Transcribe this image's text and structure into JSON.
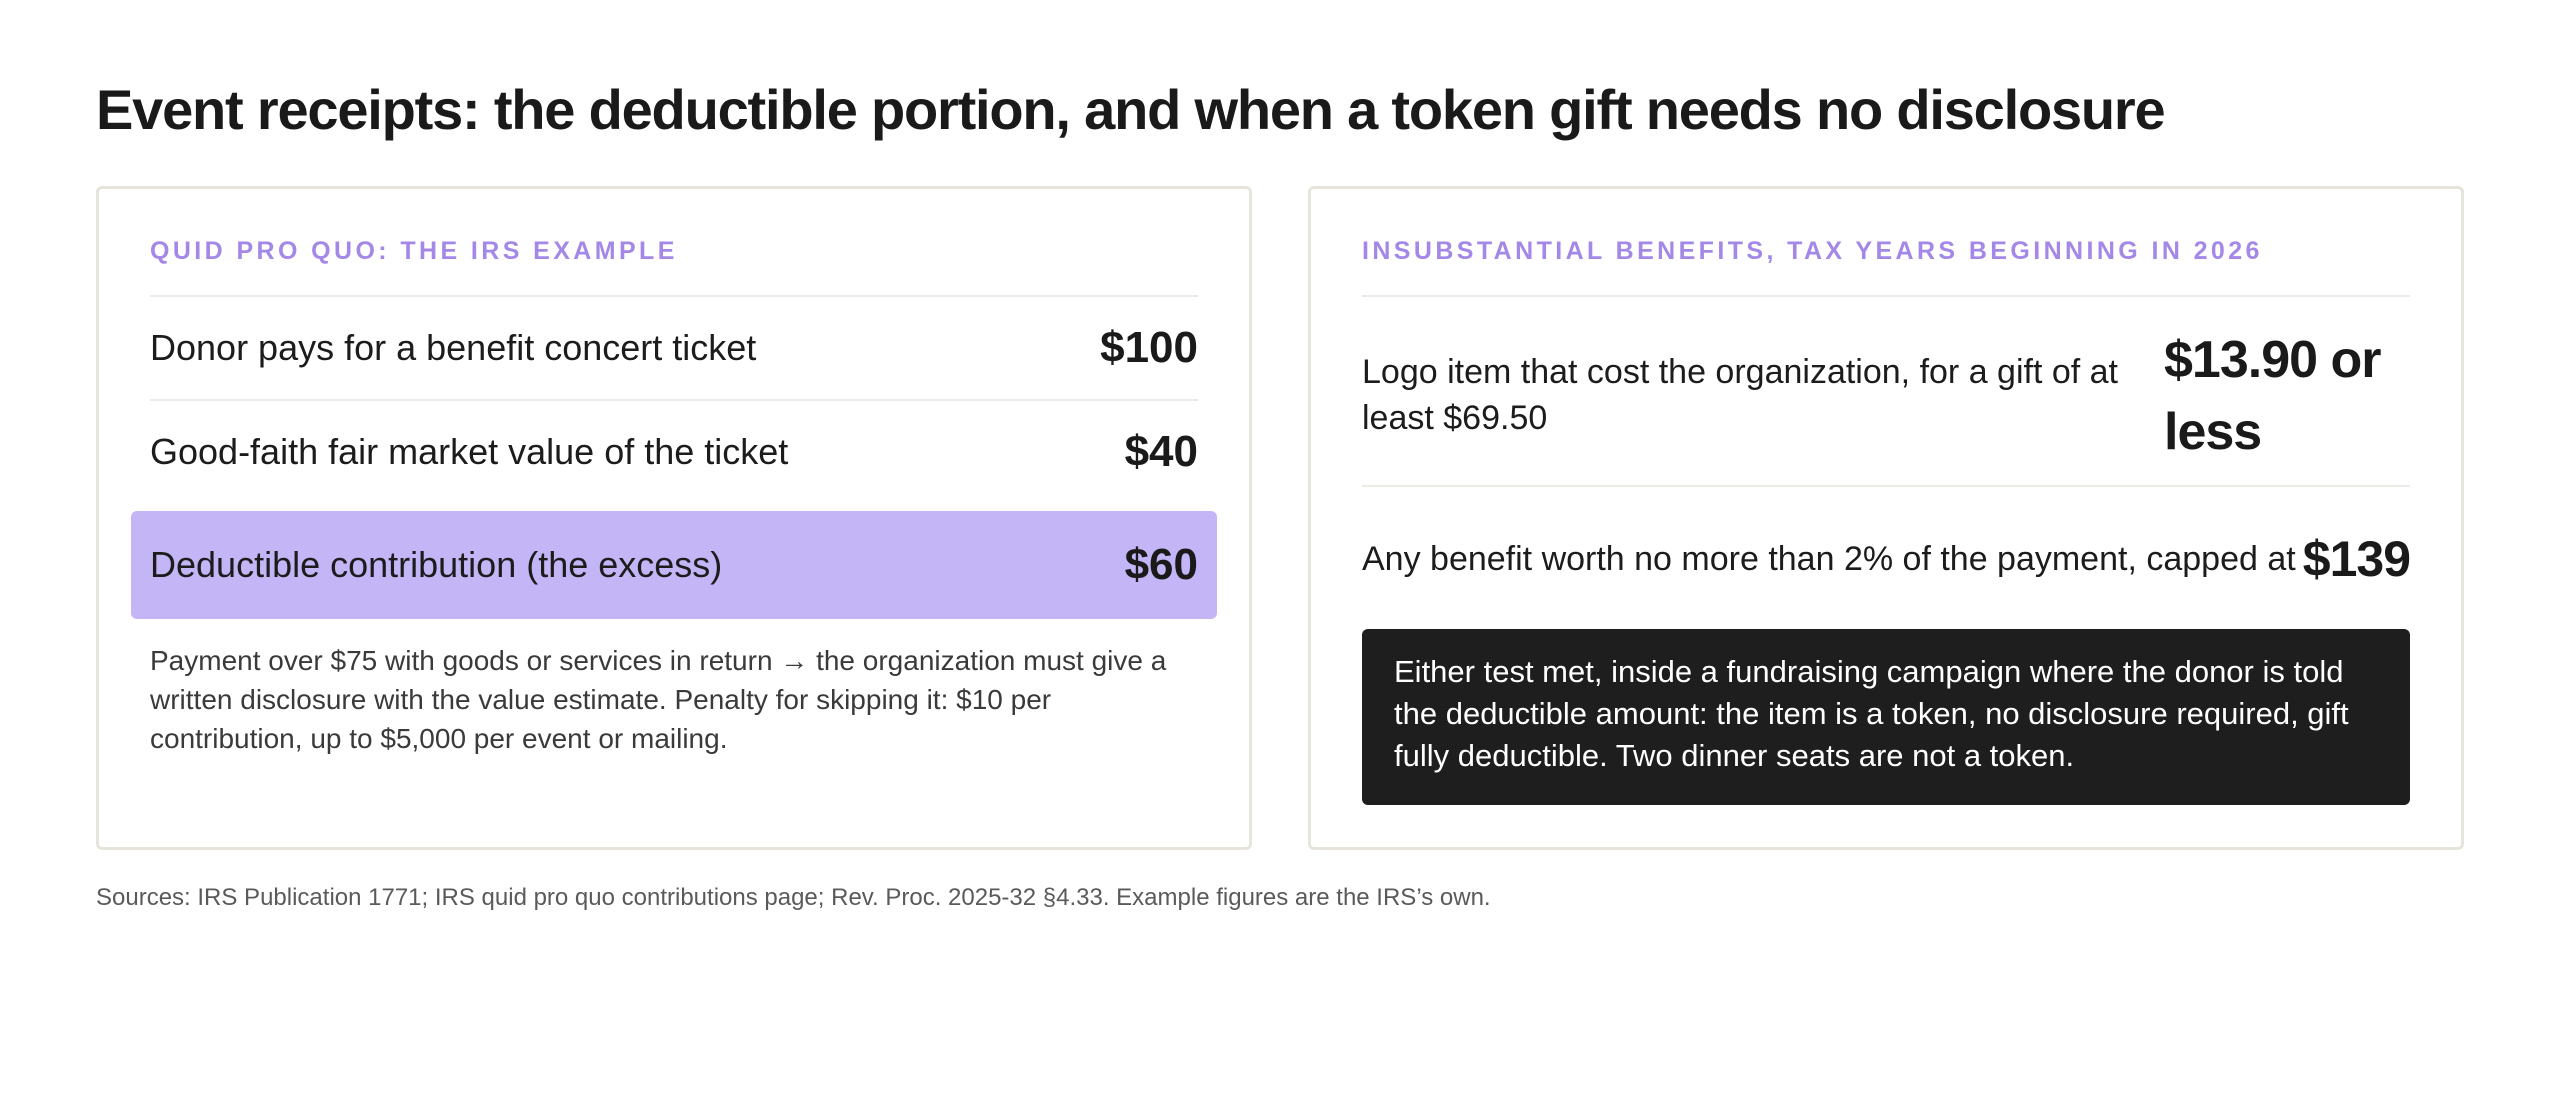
{
  "title": "Event receipts: the deductible portion, and when a token gift needs no disclosure",
  "left_card": {
    "eyebrow": "QUID PRO QUO: THE IRS EXAMPLE",
    "rows": [
      {
        "label": "Donor pays for a benefit concert ticket",
        "value": "$100"
      },
      {
        "label": "Good-faith fair market value of the ticket",
        "value": "$40"
      },
      {
        "label": "Deductible contribution (the excess)",
        "value": "$60"
      }
    ],
    "note": "Payment over $75 with goods or services in return → the organization must give a written disclosure with the value estimate. Penalty for skipping it: $10 per contribution, up to $5,000 per event or mailing."
  },
  "right_card": {
    "eyebrow": "INSUBSTANTIAL BENEFITS, TAX YEARS BEGINNING IN 2026",
    "rows": [
      {
        "label": "Logo item that cost the organization, for a gift of at least $69.50",
        "value": "$13.90 or less"
      },
      {
        "label": "Any benefit worth no more than 2% of the payment, capped at",
        "value": "$139"
      }
    ],
    "callout": "Either test met, inside a fundraising campaign where the donor is told the deductible amount: the item is a token, no disclosure required, gift fully deductible. Two dinner seats are not a token."
  },
  "sources": "Sources: IRS Publication 1771; IRS quid pro quo contributions page; Rev. Proc. 2025-32 §4.33. Example figures are the IRS’s own.",
  "colors": {
    "accent": "#a488e8",
    "highlight": "#c4b5f7",
    "callout_bg": "#1e1e1e",
    "card_border": "#e6e4dc"
  }
}
